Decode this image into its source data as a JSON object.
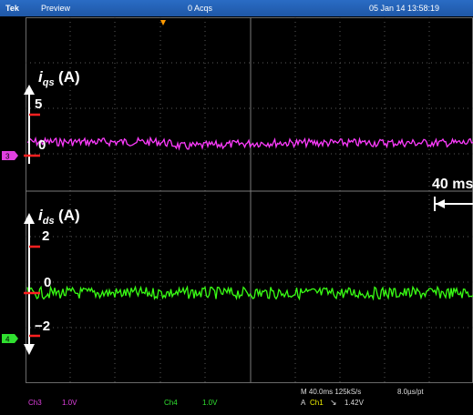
{
  "header": {
    "brand": "Tek",
    "mode": "Preview",
    "acquisitions": "0 Acqs",
    "timestamp": "05 Jan 14 13:58:19"
  },
  "upper_plot": {
    "label_main": "i",
    "label_sub": "qs",
    "label_unit": "(A)",
    "tick_5": "5",
    "tick_0": "0",
    "channel_marker": "3",
    "trace_color": "#ff3cff"
  },
  "lower_plot": {
    "label_main": "i",
    "label_sub": "ds",
    "label_unit": "(A)",
    "tick_2": "2",
    "tick_0": "0",
    "tick_neg2": "−2",
    "channel_marker": "4",
    "trace_color": "#39ff14"
  },
  "timebase_annotation": "40 ms",
  "status": {
    "ch3_label": "Ch3",
    "ch3_scale": "1.0V",
    "ch4_label": "Ch4",
    "ch4_scale": "1.0V",
    "horizontal": "M 40.0ms  125kS/s",
    "resolution": "8.0µs/pt",
    "trigger_prefix": "A",
    "trigger_source": "Ch1",
    "trigger_level": "1.42V"
  },
  "colors": {
    "upper_marker": "#e040e0",
    "lower_marker": "#30e030",
    "tick_marker": "#ff2020",
    "trigger_marker": "#ff9a00"
  }
}
